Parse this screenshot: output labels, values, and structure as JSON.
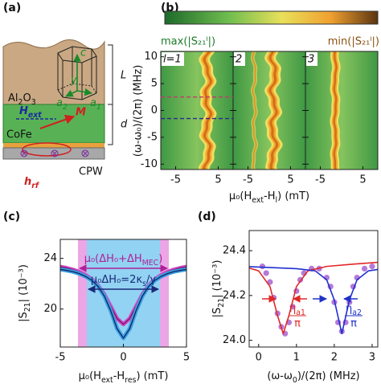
{
  "panel_labels": [
    "(a)",
    "(b)",
    "(c)",
    "(d)"
  ],
  "diagram": {
    "thickness_labels": [
      "L",
      "d"
    ],
    "substrate": [
      "Al",
      "2",
      "O",
      "3"
    ],
    "film": "CoFe",
    "waveguide": "CPW",
    "field": [
      "H",
      "ext"
    ],
    "magnetization": "M",
    "rf_field": [
      "h",
      "rf"
    ],
    "crystal_axes": [
      "c",
      "y",
      [
        "a",
        "2"
      ],
      [
        "a",
        "1"
      ]
    ]
  },
  "chart_data": [
    {
      "type": "spectra",
      "colorbar_labels": [
        "max(|S₂₁ˡ|)",
        "min(|S₂₁ˡ|)"
      ],
      "panels": [
        "l=1",
        "2",
        "3"
      ],
      "xlabel": [
        "μ₀(H",
        "ext",
        "-H",
        "l",
        ") (mT)"
      ],
      "ylabel": "(ω-ω₀)/(2π) (MHz)",
      "xlim": [
        -8.5,
        8.5
      ],
      "xticks": [
        -5,
        5
      ],
      "ylim": [
        -11,
        11
      ],
      "yticks": [
        -10,
        -5,
        0,
        5,
        10
      ],
      "cuts": [
        {
          "y": 2.5,
          "color": "#c03a6a"
        },
        {
          "y": -1.5,
          "color": "#2a2a8a"
        }
      ]
    },
    {
      "type": "line",
      "xlabel": [
        "μ₀(H",
        "ext",
        "-H",
        "res",
        ") (mT)"
      ],
      "ylabel": [
        "|S",
        "21",
        "| (10⁻³)"
      ],
      "xlim": [
        -5,
        5
      ],
      "xticks": [
        -5,
        0,
        5
      ],
      "ylim": [
        17,
        25.5
      ],
      "yticks": [
        20,
        24
      ],
      "bands": [
        {
          "x": [
            -3.6,
            3.6
          ],
          "color": "#eba6e6",
          "line_color": "#b0209a"
        },
        {
          "x": [
            -2.9,
            2.9
          ],
          "color": "#92d2f2",
          "line_color": "#1a2a7a"
        }
      ],
      "annotations": [
        {
          "text": [
            "μ₀(ΔH₀+ΔH",
            "MEC",
            ")"
          ],
          "color": "#b0209a"
        },
        {
          "text": [
            "μ₀ΔH₀=2κ",
            "s",
            "/γ"
          ],
          "color": "#1a2a7a"
        }
      ],
      "x": [
        -5,
        -4.5,
        -4,
        -3.5,
        -3,
        -2.5,
        -2,
        -1.5,
        -1,
        -0.5,
        0,
        0.5,
        1,
        1.5,
        2,
        2.5,
        3,
        3.5,
        4,
        4.5,
        5
      ],
      "series": [
        {
          "color": "#d048c4",
          "fit_color": "#6a1262",
          "values": [
            23.34,
            23.24,
            23.11,
            22.94,
            22.69,
            22.35,
            21.85,
            21.14,
            20.2,
            19.25,
            18.8,
            19.25,
            20.2,
            21.14,
            21.85,
            22.35,
            22.69,
            22.94,
            23.11,
            23.24,
            23.34
          ]
        },
        {
          "color": "#3a9ee0",
          "fit_color": "#0e1c58",
          "values": [
            23.13,
            23.05,
            22.95,
            22.8,
            22.58,
            22.27,
            21.78,
            21.01,
            19.86,
            18.45,
            17.7,
            18.45,
            19.86,
            21.01,
            21.78,
            22.27,
            22.58,
            22.8,
            22.95,
            23.05,
            23.13
          ]
        }
      ]
    },
    {
      "type": "line",
      "xlabel": [
        "(ω-ω",
        "0",
        ")/(2π) (MHz)"
      ],
      "ylabel": [
        "|S",
        "21",
        "| (10⁻³)"
      ],
      "xlim": [
        -0.25,
        3.15
      ],
      "xticks": [
        0,
        1,
        2,
        3
      ],
      "ylim": [
        23.97,
        24.49
      ],
      "yticks": [
        {
          "value": 24,
          "label": "24.0"
        },
        24.2,
        24.4
      ],
      "fractions": [
        {
          "num": [
            "η",
            "a1"
          ],
          "den": "π",
          "color": "#e02828"
        },
        {
          "num": [
            "η",
            "a2"
          ],
          "den": "π",
          "color": "#2030c8"
        }
      ],
      "series": [
        {
          "style": "markers",
          "color": "#b57ad8",
          "x": [
            0.1,
            0.2,
            0.3,
            0.4,
            0.5,
            0.6,
            0.7,
            0.8,
            0.9,
            1.0,
            1.1,
            1.2,
            1.4,
            1.6,
            1.8,
            1.9,
            2.0,
            2.1,
            2.2,
            2.3,
            2.4,
            2.5,
            2.6,
            2.8,
            3.0
          ],
          "values": [
            24.33,
            24.3,
            24.26,
            24.19,
            24.12,
            24.06,
            24.03,
            24.08,
            24.15,
            24.22,
            24.27,
            24.3,
            24.32,
            24.32,
            24.28,
            24.24,
            24.17,
            24.08,
            24.04,
            24.08,
            24.17,
            24.24,
            24.28,
            24.32,
            24.33
          ]
        },
        {
          "style": "line",
          "color": "#e02828",
          "x": [
            -0.4,
            0,
            0.3,
            0.5,
            0.65,
            0.8,
            1.0,
            1.3,
            1.8,
            2.5,
            3.3
          ],
          "values": [
            24.33,
            24.31,
            24.24,
            24.11,
            24.03,
            24.11,
            24.24,
            24.31,
            24.33,
            24.34,
            24.35
          ]
        },
        {
          "style": "line",
          "color": "#2030d0",
          "x": [
            -0.4,
            1.0,
            1.5,
            1.8,
            2.0,
            2.2,
            2.4,
            2.6,
            2.9,
            3.3
          ],
          "values": [
            24.33,
            24.32,
            24.31,
            24.27,
            24.18,
            24.03,
            24.18,
            24.27,
            24.31,
            24.32
          ]
        }
      ]
    }
  ]
}
